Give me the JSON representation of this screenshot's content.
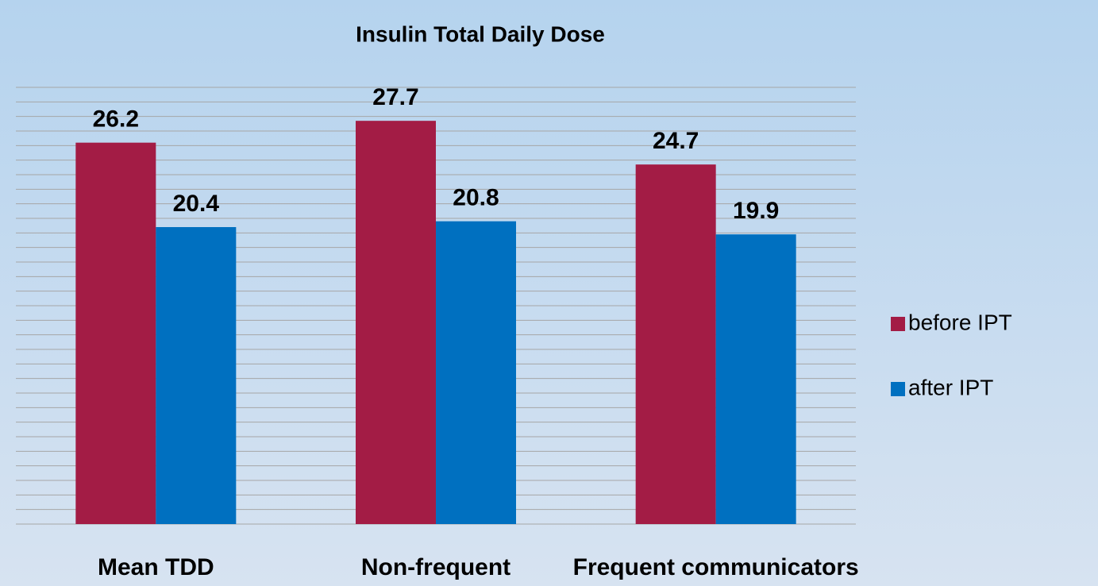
{
  "chart_data": {
    "type": "bar",
    "title": "Insulin Total Daily Dose",
    "categories": [
      "Mean TDD",
      "Non-frequent",
      "Frequent communicators"
    ],
    "series": [
      {
        "name": "before IPT",
        "color": "#a31c45",
        "values": [
          26.2,
          27.7,
          24.7
        ]
      },
      {
        "name": "after IPT",
        "color": "#0070c0",
        "values": [
          20.4,
          20.8,
          19.9
        ]
      }
    ],
    "ylim": [
      0,
      30
    ],
    "yticks": [
      0,
      1,
      2,
      3,
      4,
      5,
      6,
      7,
      8,
      9,
      10,
      11,
      12,
      13,
      14,
      15,
      16,
      17,
      18,
      19,
      20,
      21,
      22,
      23,
      24,
      25,
      26,
      27,
      28,
      29,
      30
    ],
    "grid": true,
    "legend": "right"
  }
}
